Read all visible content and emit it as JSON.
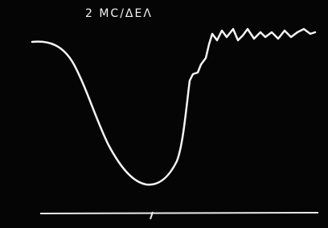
{
  "screen": {
    "scale_label": "2 MC/ΔEΛ"
  }
}
